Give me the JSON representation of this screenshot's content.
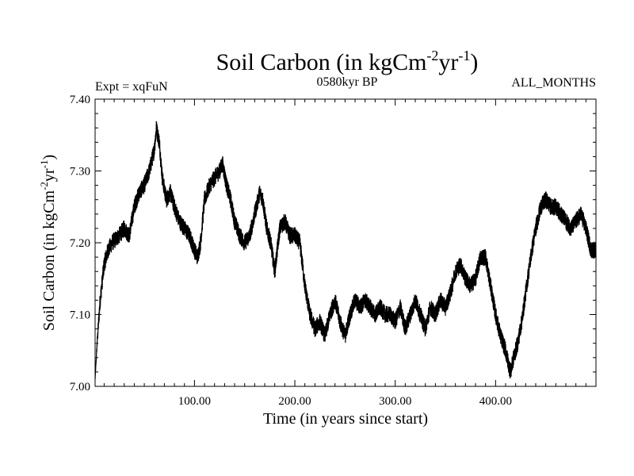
{
  "chart_data": {
    "type": "line",
    "title": "Soil Carbon (in kgCm",
    "title_sup1": "-2",
    "title_mid": "yr",
    "title_sup2": "-1",
    "title_end": ")",
    "subtitle_left": "Expt = xqFuN",
    "subtitle_center": "0580kyr BP",
    "subtitle_right": "ALL_MONTHS",
    "xlabel": "Time (in years since start)",
    "ylabel": "Soil Carbon (in kgCm",
    "ylabel_sup1": "-2",
    "ylabel_mid": "yr",
    "ylabel_sup2": "-1",
    "ylabel_end": ")",
    "xlim": [
      1,
      500
    ],
    "ylim": [
      7.0,
      7.4
    ],
    "xticks": [
      {
        "value": 100,
        "label": "100.00"
      },
      {
        "value": 200,
        "label": "200.00"
      },
      {
        "value": 300,
        "label": "300.00"
      },
      {
        "value": 400,
        "label": "400.00"
      }
    ],
    "yticks": [
      {
        "value": 7.0,
        "label": "7.00"
      },
      {
        "value": 7.1,
        "label": "7.10"
      },
      {
        "value": 7.2,
        "label": "7.20"
      },
      {
        "value": 7.3,
        "label": "7.30"
      },
      {
        "value": 7.4,
        "label": "7.40"
      }
    ],
    "grid": false,
    "noise_amplitude": 0.012,
    "series": [
      {
        "name": "Soil Carbon",
        "color": "#000000",
        "x": [
          1,
          3,
          6,
          10,
          14,
          18,
          25,
          30,
          35,
          40,
          45,
          50,
          55,
          60,
          62,
          65,
          68,
          72,
          76,
          80,
          85,
          90,
          95,
          100,
          103,
          106,
          110,
          115,
          120,
          125,
          128,
          132,
          136,
          140,
          145,
          150,
          155,
          160,
          165,
          168,
          172,
          176,
          180,
          185,
          190,
          195,
          200,
          205,
          210,
          215,
          220,
          225,
          230,
          235,
          240,
          245,
          250,
          255,
          260,
          265,
          270,
          275,
          280,
          285,
          290,
          295,
          300,
          305,
          310,
          315,
          320,
          325,
          330,
          335,
          340,
          345,
          350,
          355,
          360,
          365,
          370,
          375,
          380,
          385,
          390,
          395,
          400,
          405,
          410,
          413,
          415,
          418,
          422,
          426,
          430,
          435,
          440,
          445,
          450,
          455,
          460,
          465,
          470,
          475,
          480,
          485,
          490,
          495,
          500
        ],
        "values": [
          7.01,
          7.06,
          7.12,
          7.17,
          7.19,
          7.2,
          7.21,
          7.22,
          7.21,
          7.25,
          7.27,
          7.28,
          7.3,
          7.33,
          7.36,
          7.34,
          7.29,
          7.26,
          7.27,
          7.25,
          7.23,
          7.22,
          7.21,
          7.19,
          7.18,
          7.2,
          7.26,
          7.28,
          7.29,
          7.3,
          7.31,
          7.28,
          7.26,
          7.23,
          7.21,
          7.2,
          7.21,
          7.24,
          7.27,
          7.26,
          7.22,
          7.2,
          7.16,
          7.22,
          7.23,
          7.21,
          7.21,
          7.2,
          7.14,
          7.1,
          7.08,
          7.09,
          7.07,
          7.1,
          7.12,
          7.09,
          7.07,
          7.1,
          7.12,
          7.11,
          7.12,
          7.11,
          7.1,
          7.11,
          7.1,
          7.1,
          7.09,
          7.11,
          7.08,
          7.1,
          7.12,
          7.1,
          7.08,
          7.11,
          7.1,
          7.12,
          7.11,
          7.13,
          7.16,
          7.17,
          7.15,
          7.14,
          7.15,
          7.18,
          7.18,
          7.14,
          7.1,
          7.07,
          7.05,
          7.03,
          7.02,
          7.04,
          7.06,
          7.09,
          7.13,
          7.18,
          7.22,
          7.25,
          7.26,
          7.25,
          7.25,
          7.24,
          7.23,
          7.22,
          7.23,
          7.24,
          7.22,
          7.19,
          7.19
        ]
      }
    ]
  }
}
